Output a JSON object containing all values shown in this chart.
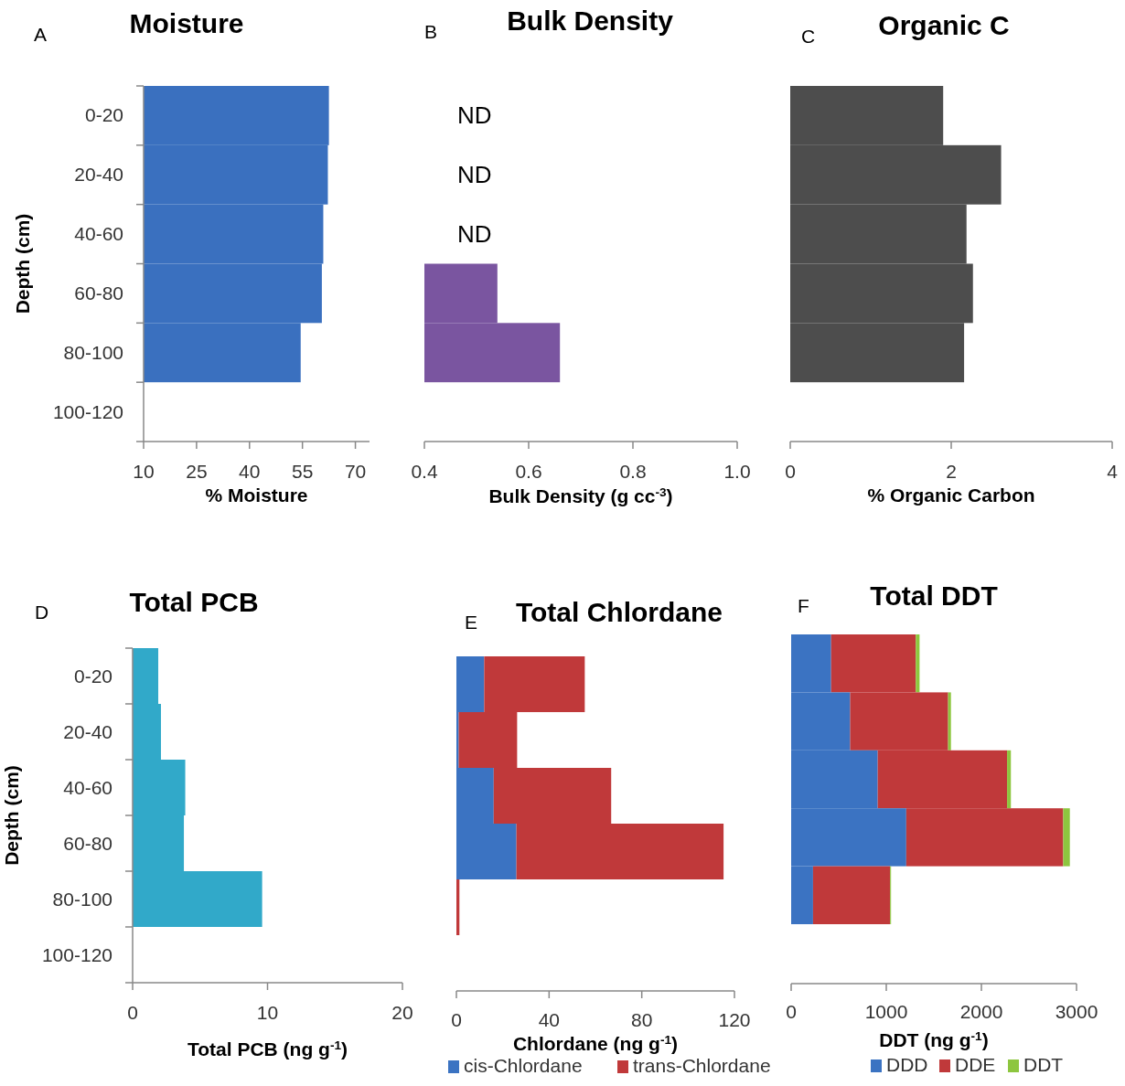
{
  "chart_data": [
    {
      "type": "bar",
      "orientation": "horizontal",
      "title": "Moisture",
      "annotations": [
        "A"
      ],
      "ylabel": "Depth (cm)",
      "xlabel": "% Moisture",
      "categories": [
        "0-20",
        "20-40",
        "40-60",
        "60-80",
        "80-100",
        "100-120"
      ],
      "values": [
        62.5,
        62.2,
        60.9,
        60.5,
        54.5,
        null
      ],
      "color": "#3a70bf",
      "xlim": [
        10,
        74
      ],
      "xticks": [
        10,
        25,
        40,
        55,
        70
      ]
    },
    {
      "type": "bar",
      "orientation": "horizontal",
      "title": "Bulk Density",
      "annotations": [
        "B"
      ],
      "xlabel": "Bulk Density (g cc$^{-3}$)",
      "categories": [
        null,
        null,
        null,
        null,
        null,
        null
      ],
      "values": [
        null,
        null,
        null,
        0.54,
        0.66,
        null
      ],
      "value_labels": [
        "ND",
        "ND",
        "ND",
        null,
        null,
        null
      ],
      "color": "#7a55a0",
      "xlim": [
        0.4,
        1.0
      ],
      "xticks": [
        {
          "value": 0.4,
          "label": "0.4"
        },
        {
          "value": 0.6,
          "label": "0.6"
        },
        {
          "value": 0.8,
          "label": "0.8"
        },
        {
          "value": 1.0,
          "label": "1.0"
        }
      ],
      "tick_labels": "x"
    },
    {
      "type": "bar",
      "orientation": "horizontal",
      "title": "Organic C",
      "annotations": [
        "C"
      ],
      "xlabel": "% Organic Carbon",
      "categories": [
        null,
        null,
        null,
        null,
        null,
        null
      ],
      "values": [
        1.9,
        2.62,
        2.19,
        2.27,
        2.16,
        null
      ],
      "color": "#4d4d4d",
      "xlim": [
        0,
        4
      ],
      "xticks": [
        0,
        2,
        4
      ],
      "tick_labels": "x"
    },
    {
      "type": "bar",
      "orientation": "horizontal",
      "title": "Total PCB",
      "annotations": [
        "D"
      ],
      "ylabel": "Depth (cm)",
      "xlabel": "Total PCB (ng g$^{-1}$)",
      "categories": [
        "0-20",
        "20-40",
        "40-60",
        "60-80",
        "80-100",
        "100-120"
      ],
      "values": [
        1.9,
        2.1,
        3.9,
        3.8,
        9.6,
        null
      ],
      "color": "#31a9c9",
      "xlim": [
        0,
        20
      ],
      "xticks": [
        0,
        10,
        20
      ]
    },
    {
      "type": "bar",
      "orientation": "horizontal",
      "stacked": true,
      "title": "Total Chlordane",
      "annotations": [
        "E"
      ],
      "xlabel": "Chlordane (ng g$^{-1}$)",
      "categories": [
        null,
        null,
        null,
        null,
        null
      ],
      "series": [
        {
          "name": "cis-Chlordane",
          "color": "#3b73c2",
          "values": [
            12.0,
            1.0,
            16.1,
            25.9,
            null
          ]
        },
        {
          "name": "trans-Chlordane",
          "color": "#c0393a",
          "values": [
            43.4,
            25.2,
            50.7,
            89.4,
            1.3
          ]
        }
      ],
      "xlim": [
        0,
        120
      ],
      "xticks": [
        0,
        40,
        80,
        120
      ],
      "tick_labels": "x",
      "legend": "bottom"
    },
    {
      "type": "bar",
      "orientation": "horizontal",
      "stacked": true,
      "title": "Total DDT",
      "annotations": [
        "F"
      ],
      "xlabel": "DDT (ng g$^{-1}$)",
      "categories": [
        null,
        null,
        null,
        null,
        null
      ],
      "series": [
        {
          "name": "DDD",
          "color": "#3b73c2",
          "values": [
            420,
            620,
            910,
            1210,
            230
          ]
        },
        {
          "name": "DDE",
          "color": "#c0393a",
          "values": [
            890,
            1030,
            1360,
            1650,
            810
          ]
        },
        {
          "name": "DDT",
          "color": "#8dc63f",
          "values": [
            40,
            30,
            40,
            70,
            10
          ]
        }
      ],
      "xlim": [
        0,
        3000
      ],
      "xticks": [
        0,
        1000,
        2000,
        3000
      ],
      "tick_labels": "x",
      "legend": "bottom"
    }
  ]
}
